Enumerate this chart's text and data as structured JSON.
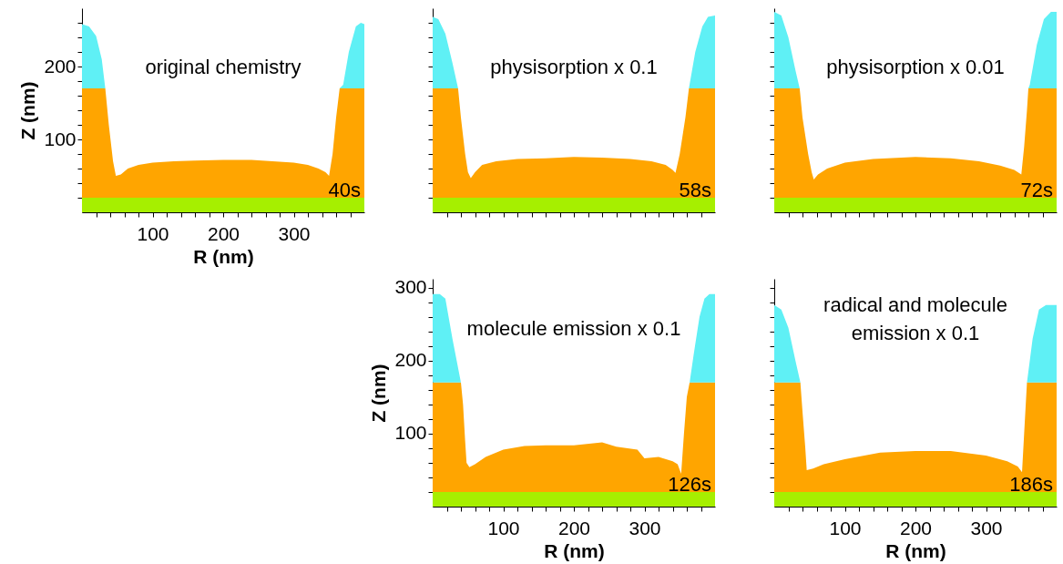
{
  "chart_data": [
    {
      "type": "area",
      "stacked": true,
      "title": "original chemistry",
      "xlabel": "R (nm)",
      "ylabel": "Z (nm)",
      "annotations": [
        "40s"
      ],
      "x": [
        0,
        10,
        20,
        28,
        33,
        38,
        44,
        48,
        55,
        65,
        80,
        100,
        130,
        160,
        200,
        240,
        270,
        300,
        320,
        335,
        345,
        350,
        355,
        360,
        365,
        370,
        378,
        388,
        395,
        400
      ],
      "series": [
        {
          "color": "#a6ef00",
          "values": [
            20,
            20,
            20,
            20,
            20,
            20,
            20,
            20,
            20,
            20,
            20,
            20,
            20,
            20,
            20,
            20,
            20,
            20,
            20,
            20,
            20,
            20,
            20,
            20,
            20,
            20,
            20,
            20,
            20,
            20
          ]
        },
        {
          "color": "#ffa500",
          "values": [
            150,
            150,
            150,
            150,
            150,
            100,
            50,
            30,
            32,
            40,
            45,
            48,
            50,
            51,
            52,
            52,
            50,
            48,
            45,
            40,
            35,
            30,
            60,
            110,
            150,
            150,
            150,
            150,
            150,
            150
          ]
        },
        {
          "color": "#5ff0f5",
          "values": [
            88,
            85,
            72,
            40,
            0,
            0,
            0,
            0,
            0,
            0,
            0,
            0,
            0,
            0,
            0,
            0,
            0,
            0,
            0,
            0,
            0,
            0,
            0,
            0,
            0,
            5,
            50,
            85,
            90,
            88
          ]
        }
      ],
      "xlim": [
        0,
        400
      ],
      "ylim": [
        0,
        280
      ],
      "xticks": [
        {
          "value": 20,
          "label": null
        },
        {
          "value": 40,
          "label": null
        },
        {
          "value": 60,
          "label": null
        },
        {
          "value": 80,
          "label": null
        },
        100,
        {
          "value": 120,
          "label": null
        },
        {
          "value": 140,
          "label": null
        },
        {
          "value": 160,
          "label": null
        },
        {
          "value": 180,
          "label": null
        },
        200,
        {
          "value": 220,
          "label": null
        },
        {
          "value": 240,
          "label": null
        },
        {
          "value": 260,
          "label": null
        },
        {
          "value": 280,
          "label": null
        },
        300,
        {
          "value": 320,
          "label": null
        },
        {
          "value": 340,
          "label": null
        },
        {
          "value": 360,
          "label": null
        },
        {
          "value": 380,
          "label": null
        }
      ],
      "yticks": [
        {
          "value": 20,
          "label": null
        },
        {
          "value": 40,
          "label": null
        },
        {
          "value": 60,
          "label": null
        },
        {
          "value": 80,
          "label": null
        },
        100,
        {
          "value": 120,
          "label": null
        },
        {
          "value": 140,
          "label": null
        },
        {
          "value": 160,
          "label": null
        },
        {
          "value": 180,
          "label": null
        },
        200,
        {
          "value": 220,
          "label": null
        },
        {
          "value": 240,
          "label": null
        },
        {
          "value": 260,
          "label": null
        }
      ]
    },
    {
      "type": "area",
      "stacked": true,
      "title": "physisorption x 0.1",
      "annotations": [
        "58s"
      ],
      "tick_labels": false,
      "x": [
        0,
        8,
        18,
        28,
        36,
        40,
        46,
        50,
        54,
        60,
        70,
        90,
        120,
        160,
        200,
        240,
        280,
        310,
        330,
        340,
        344,
        350,
        358,
        363,
        372,
        382,
        390,
        400
      ],
      "series": [
        {
          "color": "#a6ef00",
          "values": [
            20,
            20,
            20,
            20,
            20,
            20,
            20,
            20,
            20,
            20,
            20,
            20,
            20,
            20,
            20,
            20,
            20,
            20,
            20,
            20,
            20,
            20,
            20,
            20,
            20,
            20,
            20,
            20
          ]
        },
        {
          "color": "#ffa500",
          "values": [
            150,
            150,
            150,
            150,
            150,
            110,
            60,
            35,
            27,
            35,
            45,
            50,
            53,
            54,
            56,
            55,
            53,
            50,
            45,
            38,
            34,
            60,
            110,
            150,
            150,
            150,
            150,
            150
          ]
        },
        {
          "color": "#5ff0f5",
          "values": [
            98,
            95,
            75,
            35,
            0,
            0,
            0,
            0,
            0,
            0,
            0,
            0,
            0,
            0,
            0,
            0,
            0,
            0,
            0,
            0,
            0,
            0,
            0,
            0,
            50,
            85,
            98,
            100
          ]
        }
      ],
      "xlim": [
        0,
        400
      ],
      "ylim": [
        0,
        280
      ],
      "xticks": [
        20,
        40,
        60,
        80,
        100,
        120,
        140,
        160,
        180,
        200,
        220,
        240,
        260,
        280,
        300,
        320,
        340,
        360,
        380
      ],
      "yticks": [
        20,
        40,
        60,
        80,
        100,
        120,
        140,
        160,
        180,
        200,
        220,
        240,
        260
      ]
    },
    {
      "type": "area",
      "stacked": true,
      "title": "physisorption x 0.01",
      "annotations": [
        "72s"
      ],
      "tick_labels": false,
      "x": [
        0,
        10,
        20,
        30,
        36,
        40,
        48,
        53,
        56,
        62,
        75,
        100,
        140,
        200,
        250,
        290,
        320,
        340,
        350,
        354,
        358,
        360,
        362,
        372,
        382,
        392,
        400
      ],
      "series": [
        {
          "color": "#a6ef00",
          "values": [
            20,
            20,
            20,
            20,
            20,
            20,
            20,
            20,
            20,
            20,
            20,
            20,
            20,
            20,
            20,
            20,
            20,
            20,
            20,
            20,
            20,
            20,
            20,
            20,
            20,
            20,
            20
          ]
        },
        {
          "color": "#ffa500",
          "values": [
            150,
            150,
            150,
            150,
            150,
            110,
            60,
            35,
            25,
            32,
            40,
            48,
            53,
            56,
            54,
            50,
            44,
            38,
            32,
            70,
            120,
            150,
            150,
            150,
            150,
            150,
            150
          ]
        },
        {
          "color": "#5ff0f5",
          "values": [
            105,
            100,
            70,
            25,
            0,
            0,
            0,
            0,
            0,
            0,
            0,
            0,
            0,
            0,
            0,
            0,
            0,
            0,
            0,
            0,
            0,
            0,
            5,
            60,
            95,
            105,
            105
          ]
        }
      ],
      "xlim": [
        0,
        400
      ],
      "ylim": [
        0,
        280
      ],
      "xticks": [
        20,
        40,
        60,
        80,
        100,
        120,
        140,
        160,
        180,
        200,
        220,
        240,
        260,
        280,
        300,
        320,
        340,
        360,
        380
      ],
      "yticks": [
        20,
        40,
        60,
        80,
        100,
        120,
        140,
        160,
        180,
        200,
        220,
        240,
        260
      ]
    },
    {
      "type": "area",
      "stacked": true,
      "title": "molecule emission x 0.1",
      "xlabel": "R (nm)",
      "ylabel": "Z (nm)",
      "annotations": [
        "126s"
      ],
      "x": [
        0,
        10,
        18,
        28,
        34,
        40,
        43,
        46,
        48,
        52,
        60,
        75,
        100,
        130,
        160,
        200,
        240,
        260,
        290,
        300,
        320,
        340,
        347,
        352,
        356,
        360,
        364,
        370,
        378,
        385,
        392,
        400
      ],
      "series": [
        {
          "color": "#a6ef00",
          "values": [
            20,
            20,
            20,
            20,
            20,
            20,
            20,
            20,
            20,
            20,
            20,
            20,
            20,
            20,
            20,
            20,
            20,
            20,
            20,
            20,
            20,
            20,
            20,
            20,
            20,
            20,
            20,
            20,
            20,
            20,
            20,
            20
          ]
        },
        {
          "color": "#ffa500",
          "values": [
            150,
            150,
            150,
            150,
            150,
            150,
            120,
            70,
            40,
            34,
            38,
            48,
            58,
            63,
            64,
            64,
            68,
            62,
            58,
            46,
            48,
            42,
            38,
            25,
            80,
            130,
            150,
            150,
            150,
            150,
            150,
            150
          ]
        },
        {
          "color": "#5ff0f5",
          "values": [
            121,
            121,
            115,
            60,
            30,
            0,
            0,
            0,
            0,
            0,
            0,
            0,
            0,
            0,
            0,
            0,
            0,
            0,
            0,
            0,
            0,
            0,
            0,
            0,
            0,
            0,
            0,
            40,
            90,
            115,
            121,
            121
          ]
        }
      ],
      "xlim": [
        0,
        400
      ],
      "ylim": [
        0,
        312
      ],
      "xticks": [
        {
          "value": 20,
          "label": null
        },
        {
          "value": 40,
          "label": null
        },
        {
          "value": 60,
          "label": null
        },
        {
          "value": 80,
          "label": null
        },
        100,
        {
          "value": 120,
          "label": null
        },
        {
          "value": 140,
          "label": null
        },
        {
          "value": 160,
          "label": null
        },
        {
          "value": 180,
          "label": null
        },
        200,
        {
          "value": 220,
          "label": null
        },
        {
          "value": 240,
          "label": null
        },
        {
          "value": 260,
          "label": null
        },
        {
          "value": 280,
          "label": null
        },
        300,
        {
          "value": 320,
          "label": null
        },
        {
          "value": 340,
          "label": null
        },
        {
          "value": 360,
          "label": null
        },
        {
          "value": 380,
          "label": null
        }
      ],
      "yticks": [
        {
          "value": 20,
          "label": null
        },
        {
          "value": 40,
          "label": null
        },
        {
          "value": 60,
          "label": null
        },
        {
          "value": 80,
          "label": null
        },
        100,
        {
          "value": 120,
          "label": null
        },
        {
          "value": 140,
          "label": null
        },
        {
          "value": 160,
          "label": null
        },
        {
          "value": 180,
          "label": null
        },
        200,
        {
          "value": 220,
          "label": null
        },
        {
          "value": 240,
          "label": null
        },
        {
          "value": 260,
          "label": null
        },
        {
          "value": 280,
          "label": null
        },
        300
      ]
    },
    {
      "type": "area",
      "stacked": true,
      "title": "radical and molecule emission x 0.1",
      "xlabel": "R (nm)",
      "annotations": [
        "186s"
      ],
      "tick_labels": "x",
      "x": [
        0,
        10,
        20,
        30,
        37,
        40,
        44,
        46,
        55,
        70,
        100,
        150,
        200,
        250,
        300,
        330,
        345,
        351,
        354,
        358,
        366,
        375,
        385,
        400
      ],
      "series": [
        {
          "color": "#a6ef00",
          "values": [
            20,
            20,
            20,
            20,
            20,
            20,
            20,
            20,
            20,
            20,
            20,
            20,
            20,
            20,
            20,
            20,
            20,
            20,
            20,
            20,
            20,
            20,
            20,
            20
          ]
        },
        {
          "color": "#ffa500",
          "values": [
            150,
            150,
            150,
            150,
            150,
            110,
            60,
            30,
            32,
            38,
            45,
            54,
            56,
            56,
            50,
            42,
            35,
            27,
            80,
            150,
            150,
            150,
            150,
            150
          ]
        },
        {
          "color": "#5ff0f5",
          "values": [
            106,
            100,
            75,
            30,
            0,
            0,
            0,
            0,
            0,
            0,
            0,
            0,
            0,
            0,
            0,
            0,
            0,
            0,
            0,
            0,
            60,
            100,
            106,
            106
          ]
        }
      ],
      "xlim": [
        0,
        400
      ],
      "ylim": [
        0,
        312
      ],
      "xticks": [
        {
          "value": 20,
          "label": null
        },
        {
          "value": 40,
          "label": null
        },
        {
          "value": 60,
          "label": null
        },
        {
          "value": 80,
          "label": null
        },
        100,
        {
          "value": 120,
          "label": null
        },
        {
          "value": 140,
          "label": null
        },
        {
          "value": 160,
          "label": null
        },
        {
          "value": 180,
          "label": null
        },
        200,
        {
          "value": 220,
          "label": null
        },
        {
          "value": 240,
          "label": null
        },
        {
          "value": 260,
          "label": null
        },
        {
          "value": 280,
          "label": null
        },
        300,
        {
          "value": 320,
          "label": null
        },
        {
          "value": 340,
          "label": null
        },
        {
          "value": 360,
          "label": null
        },
        {
          "value": 380,
          "label": null
        }
      ],
      "yticks": [
        20,
        40,
        60,
        80,
        100,
        120,
        140,
        160,
        180,
        200,
        220,
        240,
        260,
        280,
        300
      ]
    }
  ]
}
